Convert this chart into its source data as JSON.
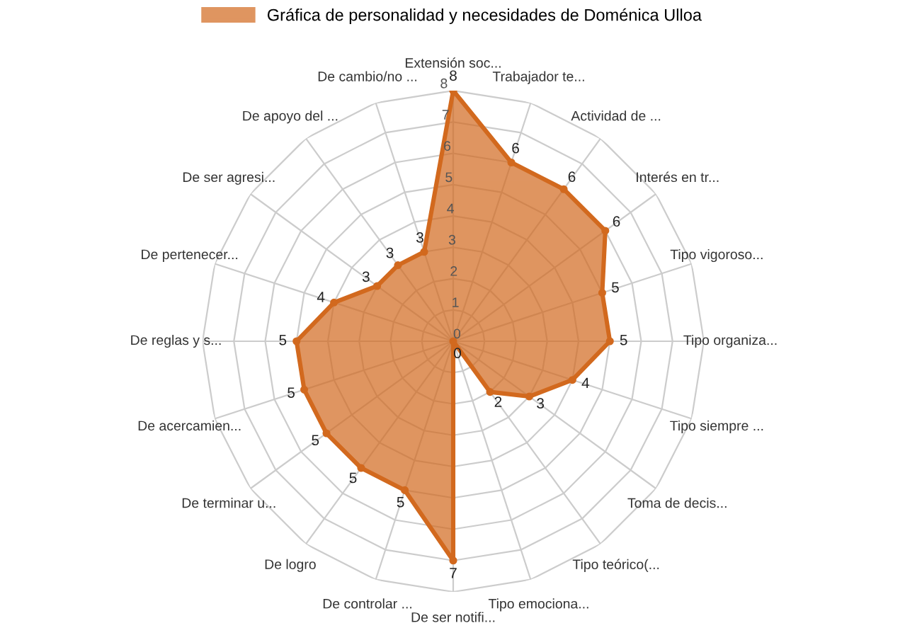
{
  "chart_data": {
    "type": "radar",
    "categories": [
      "Extensión soc...",
      "Trabajador te...",
      "Actividad de ...",
      "Interés en tr...",
      "Tipo vigoroso...",
      "Tipo organiza...",
      "Tipo siempre ...",
      "Toma de decis...",
      "Tipo teórico(...",
      "Tipo emociona...",
      "De ser notifi...",
      "De controlar ...",
      "De logro",
      "De terminar u...",
      "De acercamien...",
      "De reglas y s...",
      "De pertenecer...",
      "De ser agresi...",
      "De apoyo del ...",
      "De cambio/no ..."
    ],
    "series": [
      {
        "name": "Gráfica de personalidad y necesidades de Doménica Ulloa",
        "color": "#d2691e",
        "values": [
          8,
          6,
          6,
          6,
          5,
          5,
          4,
          3,
          2,
          0,
          7,
          5,
          5,
          5,
          5,
          5,
          4,
          3,
          3,
          3
        ]
      }
    ],
    "ylim": [
      0,
      8
    ],
    "yticks": [
      0,
      1,
      2,
      3,
      4,
      5,
      6,
      7,
      8
    ],
    "grid": true,
    "legend": "top",
    "marker": "circle",
    "data_labels": true
  }
}
